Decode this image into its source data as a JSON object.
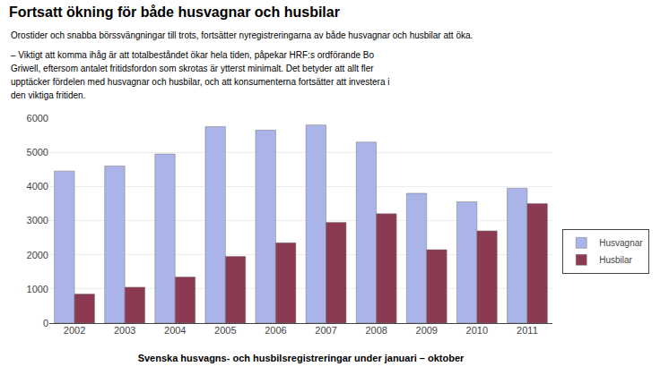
{
  "chart_data": {
    "type": "bar",
    "title": "Fortsatt ökning för både husvagnar och husbilar",
    "subtitle": "Orostider och snabba börssvängningar till trots, fortsätter nyregistreringarna av både husvagnar och husbilar att öka.",
    "annotations": [
      "– Viktigt att komma ihåg är att totalbeståndet ökar hela tiden, påpekar HRF:s ordförande Bo",
      "Griwell, eftersom antalet fritidsfordon som skrotas är ytterst minimalt. Det betyder att allt fler",
      "upptäcker fördelen med husvagnar och husbilar, och att konsumenterna fortsätter att investera i",
      "den viktiga fritiden."
    ],
    "xlabel": "Svenska husvagns- och husbilsregistreringar under januari – oktober",
    "categories": [
      "2002",
      "2003",
      "2004",
      "2005",
      "2006",
      "2007",
      "2008",
      "2009",
      "2010",
      "2011"
    ],
    "series": [
      {
        "name": "Husvagnar",
        "color": "#aab4e8",
        "values": [
          4450,
          4600,
          4950,
          5750,
          5650,
          5800,
          5300,
          3800,
          3550,
          3950
        ]
      },
      {
        "name": "Husbilar",
        "color": "#8b3a52",
        "values": [
          850,
          1050,
          1350,
          1950,
          2350,
          2950,
          3200,
          2150,
          2700,
          3500
        ]
      }
    ],
    "ylim": [
      0,
      6000
    ],
    "yticks": [
      0,
      1000,
      2000,
      3000,
      4000,
      5000,
      6000
    ],
    "grid": true,
    "legend": "right"
  }
}
